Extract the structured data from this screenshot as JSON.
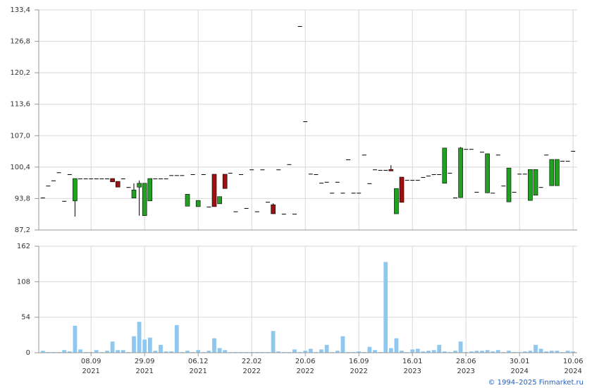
{
  "chart_data": [
    {
      "type": "candlestick",
      "ylim": [
        87.2,
        133.4
      ],
      "yticks": [
        {
          "value": 87.2,
          "label": "87,2"
        },
        {
          "value": 93.8,
          "label": "93,8"
        },
        {
          "value": 100.4,
          "label": "100,4"
        },
        {
          "value": 107.0,
          "label": "107,0"
        },
        {
          "value": 113.6,
          "label": "113,6"
        },
        {
          "value": 120.2,
          "label": "120,2"
        },
        {
          "value": 126.8,
          "label": "126,8"
        },
        {
          "value": 133.4,
          "label": "133,4"
        }
      ],
      "grid": true,
      "up_color": "#22a022",
      "down_color": "#a01010",
      "open": [
        94.0,
        96.5,
        97.6,
        99.3,
        93.3,
        98.9,
        93.3,
        98.0,
        98.0,
        98.0,
        98.0,
        98.0,
        98.0,
        98.0,
        97.4,
        98.0,
        96.2,
        93.9,
        96.2,
        90.2,
        93.3,
        98.0,
        98.0,
        98.0,
        98.7,
        98.7,
        98.7,
        92.2,
        98.9,
        92.1,
        98.9,
        92.1,
        98.9,
        92.7,
        98.9,
        99.2,
        91.1,
        98.9,
        91.8,
        99.9,
        91.1,
        99.9,
        93.1,
        92.5,
        99.9,
        90.6,
        101.0,
        90.6,
        130.0,
        110.0,
        99.0,
        98.9,
        97.1,
        97.3,
        95.0,
        97.3,
        95.0,
        102.0,
        95.0,
        95.0,
        103.0,
        97.0,
        99.9,
        99.8,
        99.8,
        99.9,
        90.6,
        98.3,
        97.7,
        97.7,
        97.7,
        98.3,
        98.6,
        98.9,
        98.9,
        97.0,
        99.2,
        94.0,
        94.0,
        104.2,
        104.2,
        95.2,
        103.6,
        95.0,
        95.0,
        103.0,
        96.5,
        93.1,
        95.2,
        99.0,
        99.0,
        93.4,
        94.5,
        96.2,
        103.0,
        96.5,
        96.5,
        101.7,
        101.7,
        103.8
      ],
      "high": [
        94.0,
        96.5,
        97.6,
        99.3,
        93.3,
        98.9,
        98.0,
        98.0,
        98.0,
        98.0,
        98.0,
        98.0,
        98.0,
        98.0,
        97.4,
        98.0,
        96.2,
        97.0,
        97.6,
        97.0,
        98.0,
        98.0,
        98.0,
        98.0,
        98.7,
        98.7,
        98.7,
        94.7,
        98.9,
        93.4,
        98.9,
        92.1,
        98.9,
        94.2,
        98.9,
        99.2,
        91.1,
        98.9,
        91.8,
        99.9,
        91.1,
        99.9,
        93.1,
        92.8,
        99.9,
        90.6,
        101.0,
        90.6,
        130.0,
        110.0,
        99.0,
        98.9,
        97.1,
        97.3,
        95.0,
        97.3,
        95.0,
        102.0,
        95.0,
        95.0,
        103.0,
        97.0,
        99.9,
        99.8,
        99.8,
        100.8,
        95.9,
        98.3,
        97.7,
        97.7,
        97.7,
        98.3,
        98.6,
        98.9,
        98.9,
        104.4,
        99.2,
        94.0,
        104.6,
        104.2,
        104.2,
        95.2,
        103.6,
        103.2,
        95.0,
        103.0,
        96.5,
        100.2,
        95.2,
        99.0,
        99.0,
        99.9,
        99.9,
        96.2,
        103.0,
        102.0,
        102.0,
        101.7,
        101.7,
        103.8
      ],
      "low": [
        94.0,
        96.5,
        97.6,
        99.3,
        93.3,
        98.9,
        90.0,
        98.0,
        98.0,
        98.0,
        98.0,
        98.0,
        98.0,
        97.3,
        96.2,
        98.0,
        96.2,
        93.9,
        90.2,
        90.2,
        93.3,
        98.0,
        98.0,
        98.0,
        98.7,
        98.7,
        98.7,
        92.2,
        98.9,
        92.1,
        98.9,
        92.1,
        92.1,
        92.7,
        95.9,
        99.2,
        91.1,
        98.9,
        91.8,
        99.9,
        91.1,
        99.9,
        93.1,
        90.6,
        99.9,
        90.6,
        101.0,
        90.6,
        130.0,
        110.0,
        99.0,
        98.9,
        97.1,
        97.3,
        95.0,
        97.3,
        95.0,
        102.0,
        95.0,
        95.0,
        103.0,
        97.0,
        99.9,
        99.8,
        99.8,
        99.6,
        90.6,
        93.0,
        97.7,
        97.7,
        97.7,
        98.3,
        98.6,
        98.9,
        98.9,
        97.0,
        99.2,
        94.0,
        94.0,
        104.2,
        104.2,
        95.2,
        103.6,
        95.0,
        95.0,
        103.0,
        96.5,
        93.1,
        95.2,
        99.0,
        99.0,
        93.4,
        94.5,
        96.2,
        103.0,
        96.5,
        96.5,
        101.7,
        101.7,
        103.8
      ],
      "close": [
        94.0,
        96.5,
        97.6,
        99.3,
        93.3,
        98.9,
        98.0,
        98.0,
        98.0,
        98.0,
        98.0,
        98.0,
        98.0,
        97.3,
        96.2,
        98.0,
        96.2,
        95.6,
        97.0,
        97.0,
        98.0,
        98.0,
        98.0,
        98.0,
        98.7,
        98.7,
        98.7,
        94.7,
        98.9,
        93.4,
        98.9,
        92.1,
        92.1,
        94.2,
        95.9,
        99.2,
        91.1,
        98.9,
        91.8,
        99.9,
        91.1,
        99.9,
        93.1,
        90.6,
        99.9,
        90.6,
        101.0,
        90.6,
        130.0,
        110.0,
        99.0,
        98.9,
        97.1,
        97.3,
        95.0,
        97.3,
        95.0,
        102.0,
        95.0,
        95.0,
        103.0,
        97.0,
        99.9,
        99.8,
        99.8,
        99.6,
        95.9,
        93.0,
        97.7,
        97.7,
        97.7,
        98.3,
        98.6,
        98.9,
        98.9,
        104.4,
        99.2,
        94.0,
        104.4,
        104.2,
        104.2,
        95.2,
        103.6,
        103.2,
        95.0,
        103.0,
        96.5,
        100.2,
        95.2,
        99.0,
        99.0,
        99.9,
        99.9,
        96.2,
        103.0,
        102.0,
        102.0,
        101.7,
        101.7,
        103.8
      ]
    },
    {
      "type": "bar",
      "color": "#8ec8f0",
      "ylim": [
        0,
        162
      ],
      "yticks": [
        0,
        54,
        108,
        162
      ],
      "grid": true,
      "xlim": [
        -0.5,
        99.5
      ],
      "xticks": [
        {
          "value": 9,
          "label": "08.09 2021"
        },
        {
          "value": 19,
          "label": "29.09 2021"
        },
        {
          "value": 29,
          "label": "06.12 2021"
        },
        {
          "value": 39,
          "label": "22.02 2022"
        },
        {
          "value": 49,
          "label": "20.06 2022"
        },
        {
          "value": 59,
          "label": "16.09 2022"
        },
        {
          "value": 69,
          "label": "16.01 2023"
        },
        {
          "value": 79,
          "label": "28.06 2023"
        },
        {
          "value": 89,
          "label": "30.01 2024"
        },
        {
          "value": 99,
          "label": "10.06 2024"
        }
      ],
      "values": [
        3,
        1,
        1,
        1,
        4,
        2,
        41,
        5,
        1,
        1,
        4,
        1,
        3,
        17,
        4,
        4,
        1,
        25,
        47,
        20,
        23,
        3,
        12,
        2,
        2,
        42,
        1,
        3,
        1,
        4,
        1,
        3,
        22,
        7,
        4,
        1,
        1,
        1,
        1,
        1,
        1,
        1,
        1,
        33,
        2,
        1,
        1,
        5,
        1,
        3,
        6,
        1,
        5,
        12,
        1,
        3,
        25,
        1,
        1,
        2,
        1,
        9,
        4,
        1,
        138,
        7,
        22,
        3,
        1,
        5,
        6,
        2,
        3,
        4,
        12,
        2,
        1,
        3,
        17,
        1,
        2,
        3,
        3,
        4,
        2,
        4,
        1,
        3,
        1,
        1,
        2,
        3,
        12,
        6,
        2,
        3,
        3,
        1,
        3,
        2
      ]
    }
  ],
  "footer": "© 1994–2025 Finmarket.ru"
}
